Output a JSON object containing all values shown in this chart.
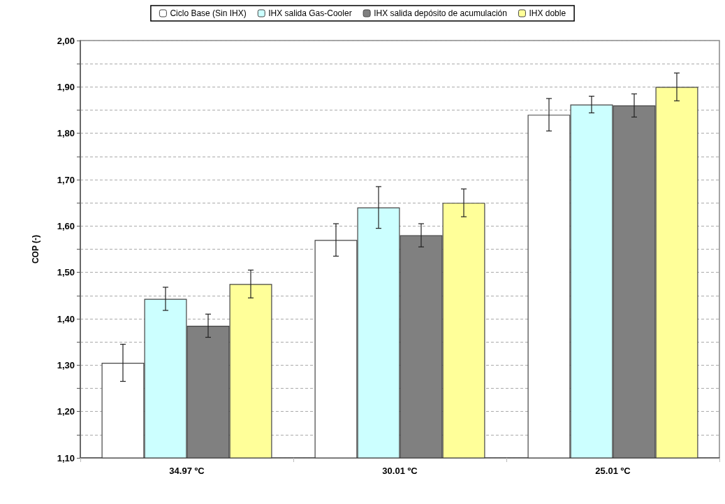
{
  "chart_data": {
    "type": "bar",
    "ylabel": "COP (-)",
    "categories": [
      "34.97 ºC",
      "30.01 ºC",
      "25.01 ºC"
    ],
    "series": [
      {
        "name": "Ciclo Base (Sin IHX)",
        "color": "#ffffff",
        "values": [
          1.305,
          1.57,
          1.84
        ],
        "errors": [
          0.04,
          0.035,
          0.035
        ]
      },
      {
        "name": "IHX salida Gas-Cooler",
        "color": "#ccffff",
        "values": [
          1.443,
          1.64,
          1.862
        ],
        "errors": [
          0.025,
          0.045,
          0.018
        ]
      },
      {
        "name": "IHX salida depósito de acumulación",
        "color": "#808080",
        "values": [
          1.385,
          1.58,
          1.86
        ],
        "errors": [
          0.025,
          0.025,
          0.025
        ]
      },
      {
        "name": "IHX doble",
        "color": "#ffff99",
        "values": [
          1.475,
          1.65,
          1.9
        ],
        "errors": [
          0.03,
          0.03,
          0.03
        ]
      }
    ],
    "ylim": [
      1.1,
      2.0
    ],
    "yticks": [
      {
        "value": 1.1,
        "label": "1,10"
      },
      {
        "value": 1.15,
        "label": null
      },
      {
        "value": 1.2,
        "label": "1,20"
      },
      {
        "value": 1.25,
        "label": null
      },
      {
        "value": 1.3,
        "label": "1,30"
      },
      {
        "value": 1.35,
        "label": null
      },
      {
        "value": 1.4,
        "label": "1,40"
      },
      {
        "value": 1.45,
        "label": null
      },
      {
        "value": 1.5,
        "label": "1,50"
      },
      {
        "value": 1.55,
        "label": null
      },
      {
        "value": 1.6,
        "label": "1,60"
      },
      {
        "value": 1.65,
        "label": null
      },
      {
        "value": 1.7,
        "label": "1,70"
      },
      {
        "value": 1.75,
        "label": null
      },
      {
        "value": 1.8,
        "label": "1,80"
      },
      {
        "value": 1.85,
        "label": null
      },
      {
        "value": 1.9,
        "label": "1,90"
      },
      {
        "value": 1.95,
        "label": null
      },
      {
        "value": 2.0,
        "label": "2,00"
      }
    ],
    "grid": "y",
    "legend": "top"
  }
}
